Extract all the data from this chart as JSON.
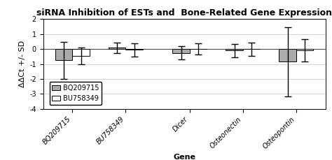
{
  "title": "siRNA Inhibition of ESTs and  Bone-Related Gene Expression",
  "xlabel": "Gene",
  "ylabel": "ΔΔCt +/- SD",
  "ylim": [
    -4,
    2
  ],
  "yticks": [
    -4,
    -3,
    -2,
    -1,
    0,
    1,
    2
  ],
  "categories": [
    "BQ209715",
    "BU758349",
    "Dicer",
    "Osteonectin",
    "Osteopontin"
  ],
  "bq_values": [
    -0.75,
    0.1,
    -0.25,
    -0.1,
    -0.85
  ],
  "bu_values": [
    -0.45,
    -0.05,
    0.0,
    0.0,
    -0.1
  ],
  "bq_errors": [
    1.25,
    0.35,
    0.45,
    0.45,
    2.3
  ],
  "bu_errors": [
    0.55,
    0.45,
    0.38,
    0.45,
    0.75
  ],
  "bq_color": "#aaaaaa",
  "bu_color": "#ffffff",
  "bar_width": 0.32,
  "legend_labels": [
    "BQ209715",
    "BU758349"
  ],
  "title_fontsize": 9,
  "label_fontsize": 8,
  "tick_fontsize": 7,
  "legend_fontsize": 7,
  "x_positions": [
    0,
    1.0,
    2.2,
    3.2,
    4.2
  ],
  "xlim": [
    -0.55,
    4.75
  ]
}
